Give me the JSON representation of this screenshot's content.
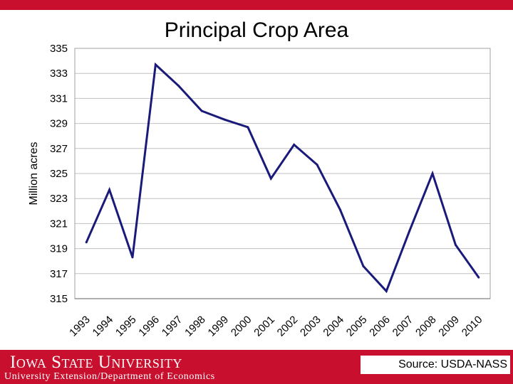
{
  "chart_data": {
    "type": "line",
    "title": "Principal Crop Area",
    "xlabel": "",
    "ylabel": "Million acres",
    "ylim": [
      315,
      335
    ],
    "yticks": [
      315,
      317,
      319,
      321,
      323,
      325,
      327,
      329,
      331,
      333,
      335
    ],
    "grid": true,
    "legend": "none",
    "line_color": "#1a1a7a",
    "categories": [
      "1993",
      "1994",
      "1995",
      "1996",
      "1997",
      "1998",
      "1999",
      "2000",
      "2001",
      "2002",
      "2003",
      "2004",
      "2005",
      "2006",
      "2007",
      "2008",
      "2009",
      "2010"
    ],
    "series": [
      {
        "values": [
          319.5,
          323.7,
          318.3,
          333.7,
          332.0,
          330.0,
          329.3,
          328.7,
          324.6,
          327.3,
          325.7,
          322.1,
          317.6,
          315.6,
          320.4,
          325.0,
          319.3,
          316.7
        ]
      }
    ]
  },
  "footer": {
    "logo_text": "Iowa State University",
    "department": "University Extension/Department of Economics",
    "source": "Source: USDA-NASS"
  },
  "colors": {
    "brand_red": "#c8102e"
  }
}
